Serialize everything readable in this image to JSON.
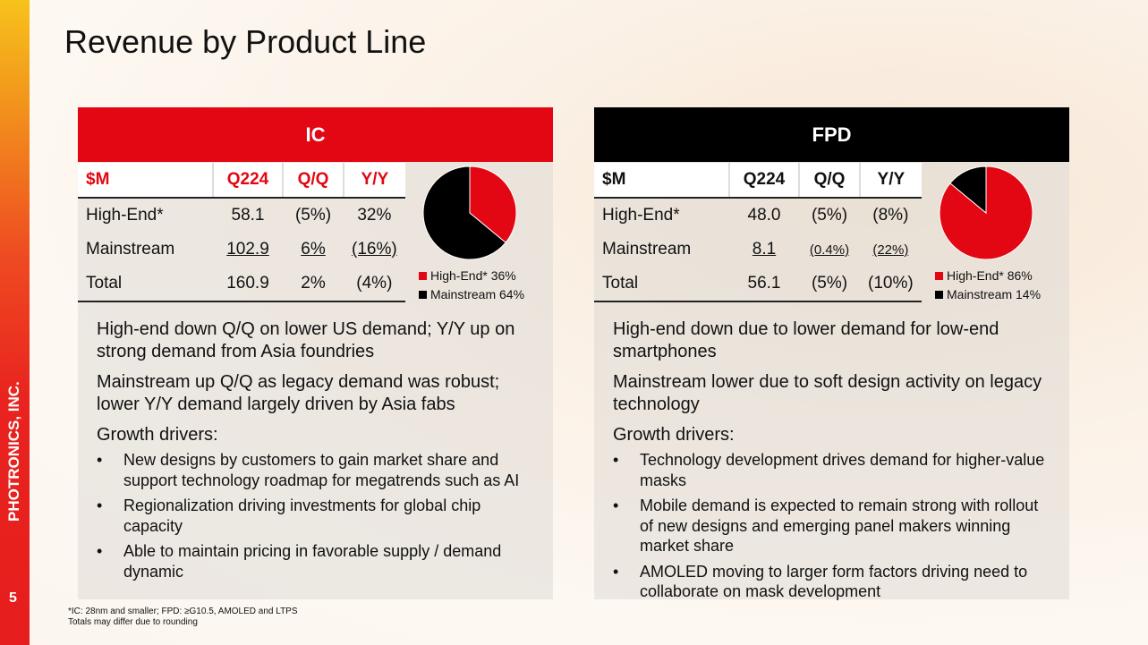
{
  "title": "Revenue by Product Line",
  "sidebar": {
    "company": "PHOTRONICS, INC.",
    "page_number": "5"
  },
  "colors": {
    "accent_red": "#e30613",
    "black": "#000000"
  },
  "ic": {
    "header": "IC",
    "table": {
      "columns": [
        "$M",
        "Q224",
        "Q/Q",
        "Y/Y"
      ],
      "rows": [
        {
          "label": "High-End*",
          "q224": "58.1",
          "qq": "(5%)",
          "yy": "32%"
        },
        {
          "label": "Mainstream",
          "q224": "102.9",
          "qq": "6%",
          "yy": "(16%)"
        },
        {
          "label": "Total",
          "q224": "160.9",
          "qq": "2%",
          "yy": "(4%)"
        }
      ]
    },
    "legend": [
      "High-End* 36%",
      "Mainstream 64%"
    ],
    "notes": [
      "High-end down Q/Q on lower US demand; Y/Y up on strong demand from Asia foundries",
      "Mainstream up Q/Q as legacy demand was robust; lower Y/Y demand largely driven by Asia fabs"
    ],
    "growth_heading": "Growth drivers:",
    "drivers": [
      "New designs by customers to gain market share and support technology roadmap for megatrends such as AI",
      "Regionalization driving investments for global chip capacity",
      "Able to maintain pricing in favorable supply / demand dynamic"
    ]
  },
  "fpd": {
    "header": "FPD",
    "table": {
      "columns": [
        "$M",
        "Q224",
        "Q/Q",
        "Y/Y"
      ],
      "rows": [
        {
          "label": "High-End*",
          "q224": "48.0",
          "qq": "(5%)",
          "yy": "(8%)"
        },
        {
          "label": "Mainstream",
          "q224": "8.1",
          "qq": "(0.4%)",
          "yy": "(22%)"
        },
        {
          "label": "Total",
          "q224": "56.1",
          "qq": "(5%)",
          "yy": "(10%)"
        }
      ]
    },
    "legend": [
      "High-End* 86%",
      "Mainstream 14%"
    ],
    "notes": [
      "High-end down due to lower demand for low-end smartphones",
      "Mainstream lower due to soft design activity on legacy technology"
    ],
    "growth_heading": "Growth drivers:",
    "drivers": [
      "Technology development drives demand for higher-value masks",
      "Mobile demand is expected to remain strong with rollout of new designs and emerging panel makers winning market share",
      "AMOLED moving to larger form factors driving need to collaborate on mask development"
    ]
  },
  "chart_data": [
    {
      "type": "pie",
      "categories": [
        "High-End*",
        "Mainstream"
      ],
      "values": [
        36,
        64
      ],
      "colors": [
        "#e30613",
        "#000000"
      ],
      "legend": "right"
    },
    {
      "type": "pie",
      "categories": [
        "High-End*",
        "Mainstream"
      ],
      "values": [
        86,
        14
      ],
      "colors": [
        "#e30613",
        "#000000"
      ],
      "legend": "right"
    }
  ],
  "footnote": {
    "line1": "*IC: 28nm and smaller; FPD: ≥G10.5, AMOLED and LTPS",
    "line2": "Totals may differ due to rounding"
  }
}
